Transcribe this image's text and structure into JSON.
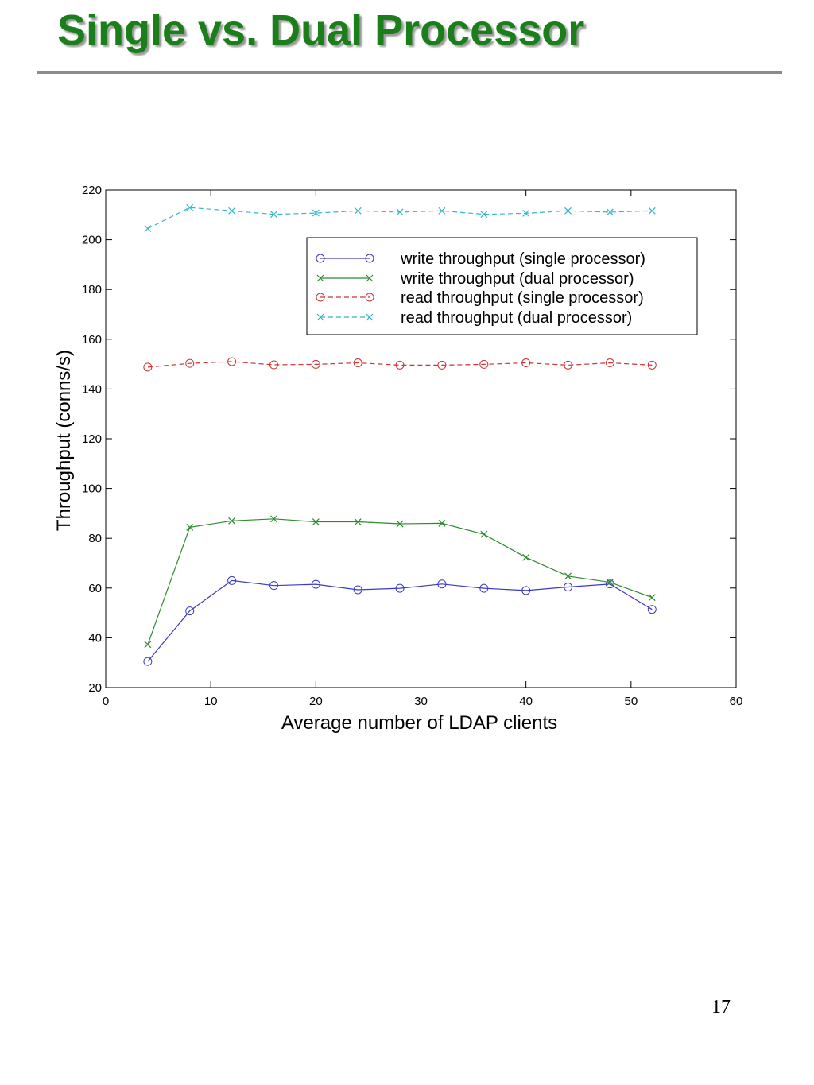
{
  "slide": {
    "title": "Single vs. Dual Processor",
    "page_number": "17"
  },
  "colors": {
    "title": "#1a7f1a",
    "rule": "#8c8c8c"
  },
  "chart_data": {
    "type": "line",
    "title": "",
    "xlabel": "Average number of LDAP clients",
    "ylabel": "Throughput (conns/s)",
    "xlim": [
      0,
      60
    ],
    "ylim": [
      20,
      220
    ],
    "xticks": [
      0,
      10,
      20,
      30,
      40,
      50,
      60
    ],
    "yticks": [
      20,
      40,
      60,
      80,
      100,
      120,
      140,
      160,
      180,
      200,
      220
    ],
    "grid": false,
    "legend_position": "top-right",
    "x": [
      4,
      8,
      12,
      16,
      20,
      24,
      28,
      32,
      36,
      40,
      44,
      48,
      52
    ],
    "series": [
      {
        "name": "write throughput (single processor)",
        "color": "#3a3ac8",
        "line_style": "solid",
        "marker": "circle",
        "values": [
          30.5,
          50.8,
          63.0,
          61.0,
          61.5,
          59.3,
          59.9,
          61.6,
          59.9,
          59.0,
          60.4,
          61.6,
          51.4
        ]
      },
      {
        "name": "write throughput (dual processor)",
        "color": "#2e8b2e",
        "line_style": "solid",
        "marker": "x",
        "values": [
          37.3,
          84.4,
          87.0,
          87.8,
          86.6,
          86.6,
          85.8,
          86.0,
          81.6,
          72.3,
          64.8,
          62.3,
          56.2
        ]
      },
      {
        "name": "read throughput (single processor)",
        "color": "#cc3333",
        "line_style": "dashed",
        "marker": "circle",
        "values": [
          148.8,
          150.3,
          151.0,
          149.7,
          149.9,
          150.5,
          149.6,
          149.6,
          149.9,
          150.5,
          149.6,
          150.5,
          149.6
        ]
      },
      {
        "name": "read throughput (dual processor)",
        "color": "#33b8c8",
        "line_style": "dashed",
        "marker": "x",
        "values": [
          204.5,
          212.9,
          211.6,
          210.2,
          210.7,
          211.6,
          211.1,
          211.6,
          210.2,
          210.6,
          211.6,
          211.1,
          211.6
        ]
      }
    ]
  }
}
